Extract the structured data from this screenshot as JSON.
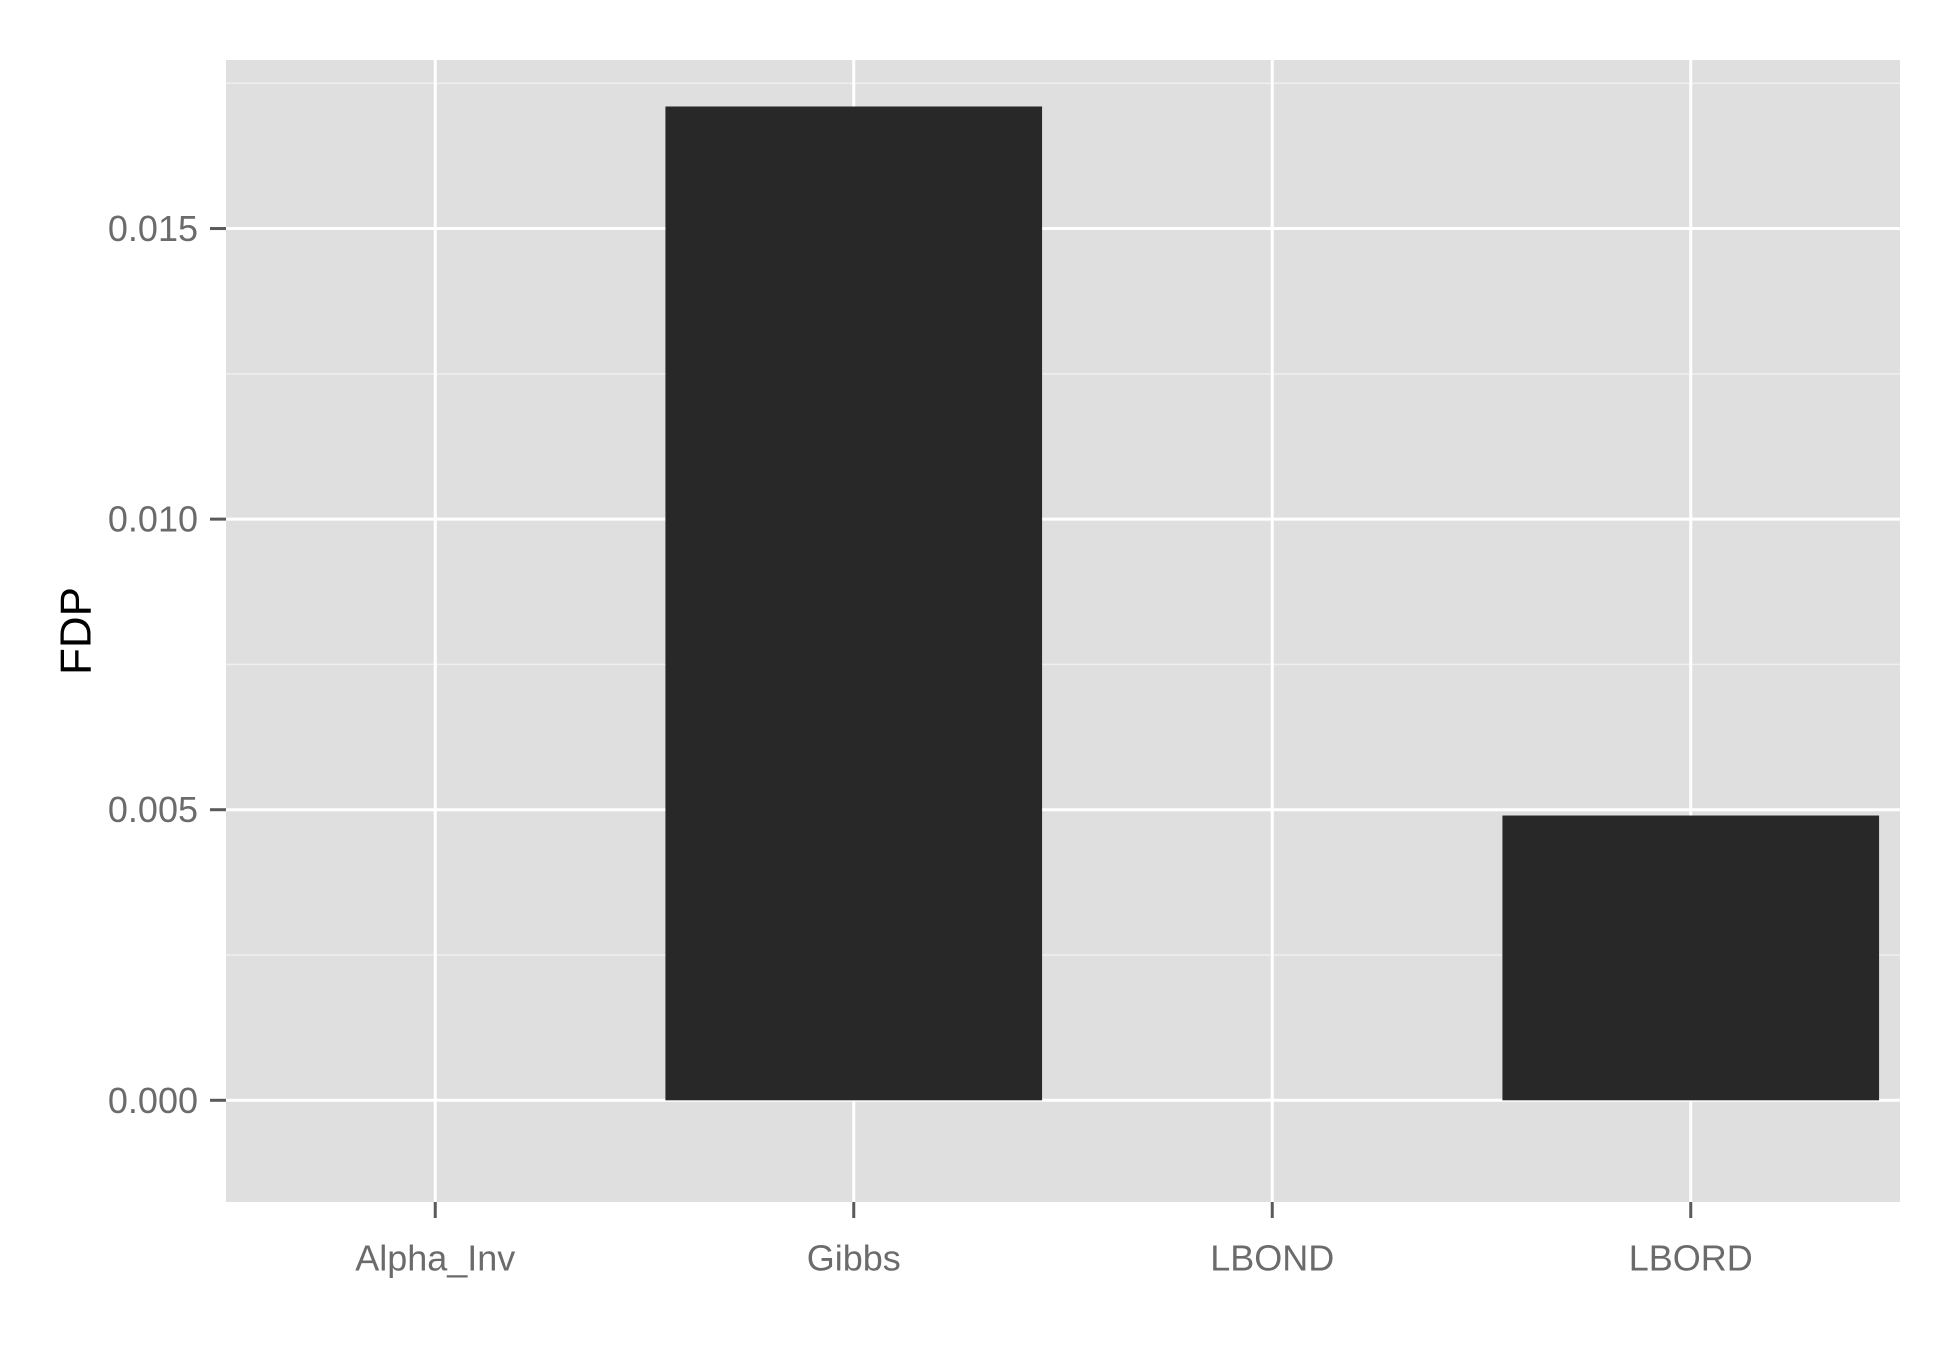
{
  "chart_data": {
    "type": "bar",
    "categories": [
      "Alpha_Inv",
      "Gibbs",
      "LBOND",
      "LBORD"
    ],
    "values": [
      0.0,
      0.0171,
      0.0,
      0.0049
    ],
    "title": "",
    "xlabel": "",
    "ylabel": "FDP",
    "ylim": [
      -0.00175,
      0.0179
    ],
    "yticks": [
      0.0,
      0.005,
      0.01,
      0.015
    ],
    "ytick_labels": [
      "0.000",
      "0.005",
      "0.010",
      "0.015"
    ],
    "grid": true,
    "legend": "none",
    "colors": {
      "bar": "#282828",
      "panel": "#dfdfdf",
      "grid": "#ffffff"
    }
  }
}
